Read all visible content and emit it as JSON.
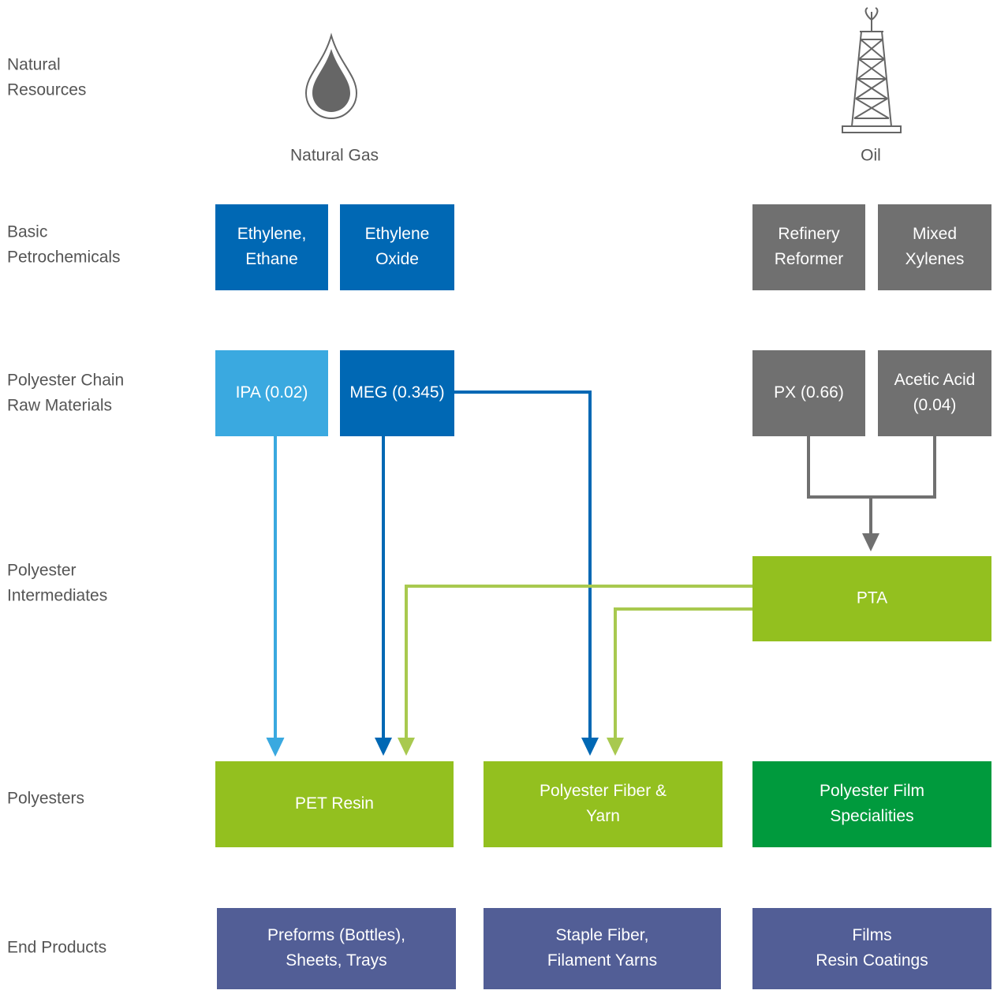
{
  "rows": [
    {
      "label": [
        "Natural",
        "Resources"
      ]
    },
    {
      "label": [
        "Basic",
        "Petrochemicals"
      ]
    },
    {
      "label": [
        "Polyester Chain",
        "Raw Materials"
      ]
    },
    {
      "label": [
        "Polyester",
        "Intermediates"
      ]
    },
    {
      "label": [
        "Polyesters"
      ]
    },
    {
      "label": [
        "End Products"
      ]
    }
  ],
  "sources": [
    {
      "label": "Natural Gas"
    },
    {
      "label": "Oil"
    }
  ],
  "nodes": [
    {
      "label": [
        "Ethylene,",
        "Ethane"
      ]
    },
    {
      "label": [
        "Ethylene",
        "Oxide"
      ]
    },
    {
      "label": [
        "Refinery",
        "Reformer"
      ]
    },
    {
      "label": [
        "Mixed",
        "Xylenes"
      ]
    },
    {
      "label": [
        "IPA (0.02)"
      ]
    },
    {
      "label": [
        "MEG (0.345)"
      ]
    },
    {
      "label": [
        "PX (0.66)"
      ]
    },
    {
      "label": [
        "Acetic Acid",
        "(0.04)"
      ]
    },
    {
      "label": [
        "PTA"
      ]
    },
    {
      "label": [
        "PET Resin"
      ]
    },
    {
      "label": [
        "Polyester Fiber &",
        "Yarn"
      ]
    },
    {
      "label": [
        "Polyester Film",
        "Specialities"
      ]
    },
    {
      "label": [
        "Preforms (Bottles),",
        "Sheets, Trays"
      ]
    },
    {
      "label": [
        "Staple Fiber,",
        "Filament Yarns"
      ]
    },
    {
      "label": [
        "Films",
        "Resin Coatings"
      ]
    }
  ]
}
